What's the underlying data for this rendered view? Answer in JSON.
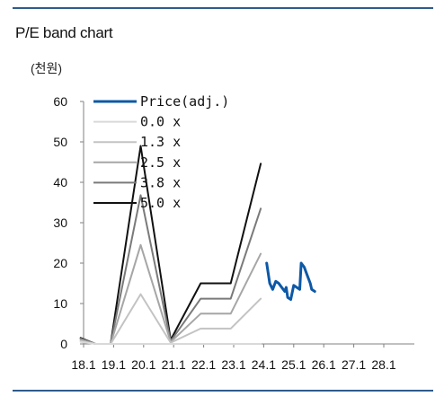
{
  "chart_data": {
    "type": "line",
    "title": "P/E band chart",
    "unit_label": "(천원)",
    "x": [
      "18.1",
      "19.1",
      "20.1",
      "21.1",
      "22.1",
      "23.1",
      "24.1",
      "25.1",
      "26.1",
      "27.1",
      "28.1"
    ],
    "ylim": [
      0,
      60
    ],
    "yticks": [
      0,
      10,
      20,
      30,
      40,
      50,
      60
    ],
    "grid": false,
    "legend_position": "top-left",
    "series": [
      {
        "name": "Price(adj.)",
        "color": "#0d58a6",
        "points": [
          [
            24.2,
            20
          ],
          [
            24.3,
            15
          ],
          [
            24.4,
            13.5
          ],
          [
            24.5,
            15.5
          ],
          [
            24.6,
            15
          ],
          [
            24.7,
            14
          ],
          [
            24.8,
            13
          ],
          [
            24.85,
            14
          ],
          [
            24.9,
            11.5
          ],
          [
            25.0,
            11
          ],
          [
            25.1,
            14.5
          ],
          [
            25.2,
            14
          ],
          [
            25.3,
            13.5
          ],
          [
            25.35,
            20
          ],
          [
            25.45,
            19
          ],
          [
            25.55,
            17
          ],
          [
            25.65,
            15
          ],
          [
            25.7,
            13.5
          ],
          [
            25.8,
            13
          ]
        ]
      },
      {
        "name": "0.0 x",
        "color": "#d9d9d9",
        "points": [
          [
            18.0,
            0.5
          ],
          [
            18.5,
            0
          ],
          [
            19.0,
            0
          ],
          [
            20.0,
            0
          ],
          [
            21.0,
            0
          ],
          [
            22.0,
            0
          ],
          [
            23.0,
            0
          ],
          [
            24.0,
            0
          ]
        ]
      },
      {
        "name": "1.3 x",
        "color": "#c3c3c3",
        "points": [
          [
            18.0,
            0.7
          ],
          [
            18.5,
            0
          ],
          [
            19.0,
            0
          ],
          [
            20.0,
            12.3
          ],
          [
            21.0,
            0.3
          ],
          [
            22.0,
            3.8
          ],
          [
            23.0,
            3.8
          ],
          [
            24.0,
            11.2
          ]
        ]
      },
      {
        "name": "2.5 x",
        "color": "#a6a6a6",
        "points": [
          [
            18.0,
            1
          ],
          [
            18.5,
            0
          ],
          [
            19.0,
            0
          ],
          [
            20.0,
            24.5
          ],
          [
            21.0,
            0.5
          ],
          [
            22.0,
            7.5
          ],
          [
            23.0,
            7.5
          ],
          [
            24.0,
            22.3
          ]
        ]
      },
      {
        "name": "3.8 x",
        "color": "#7a7a7a",
        "points": [
          [
            18.0,
            1.3
          ],
          [
            18.5,
            0
          ],
          [
            19.0,
            0
          ],
          [
            20.0,
            36.8
          ],
          [
            21.0,
            0.7
          ],
          [
            22.0,
            11.2
          ],
          [
            23.0,
            11.2
          ],
          [
            24.0,
            33.5
          ]
        ]
      },
      {
        "name": "5.0 x",
        "color": "#111111",
        "points": [
          [
            18.0,
            1.5
          ],
          [
            18.5,
            0
          ],
          [
            19.0,
            0
          ],
          [
            20.0,
            49
          ],
          [
            21.0,
            1
          ],
          [
            22.0,
            15
          ],
          [
            23.0,
            15
          ],
          [
            24.0,
            44.6
          ]
        ]
      }
    ]
  }
}
